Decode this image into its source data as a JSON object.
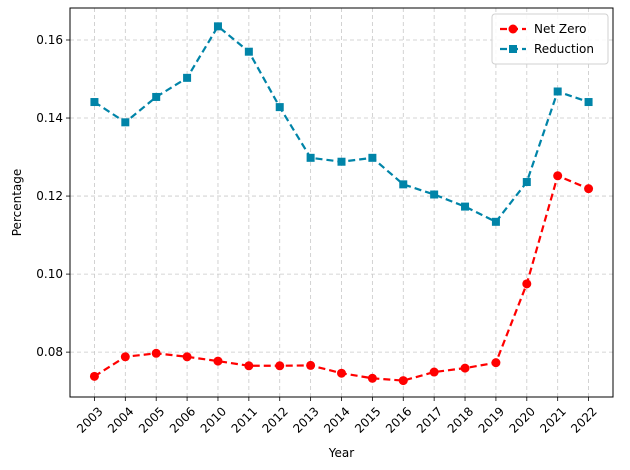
{
  "chart_data": {
    "type": "line",
    "title": "",
    "xlabel": "Year",
    "ylabel": "Percentage",
    "categories": [
      "2003",
      "2004",
      "2005",
      "2006",
      "2010",
      "2011",
      "2012",
      "2013",
      "2014",
      "2015",
      "2016",
      "2017",
      "2018",
      "2019",
      "2020",
      "2021",
      "2022"
    ],
    "y_ticks": [
      "0.08",
      "0.10",
      "0.12",
      "0.14",
      "0.16"
    ],
    "y_tick_values": [
      0.08,
      0.1,
      0.12,
      0.14,
      0.16
    ],
    "ylim": [
      0.0685,
      0.1682
    ],
    "grid": true,
    "legend_position": "top-right",
    "series": [
      {
        "name": "Net Zero",
        "color": "#ff0000",
        "marker": "circle",
        "linestyle": "dashed",
        "values": [
          0.0738,
          0.0788,
          0.0797,
          0.0788,
          0.0777,
          0.0765,
          0.0765,
          0.0766,
          0.0746,
          0.0733,
          0.0727,
          0.0749,
          0.0759,
          0.0773,
          0.0975,
          0.1252,
          0.1219
        ]
      },
      {
        "name": "Reduction",
        "color": "#0084a8",
        "marker": "square",
        "linestyle": "dashed",
        "values": [
          0.1441,
          0.1389,
          0.1454,
          0.1503,
          0.1635,
          0.157,
          0.1428,
          0.1298,
          0.1288,
          0.1298,
          0.123,
          0.1204,
          0.1173,
          0.1134,
          0.1236,
          0.1468,
          0.1441
        ]
      }
    ]
  }
}
